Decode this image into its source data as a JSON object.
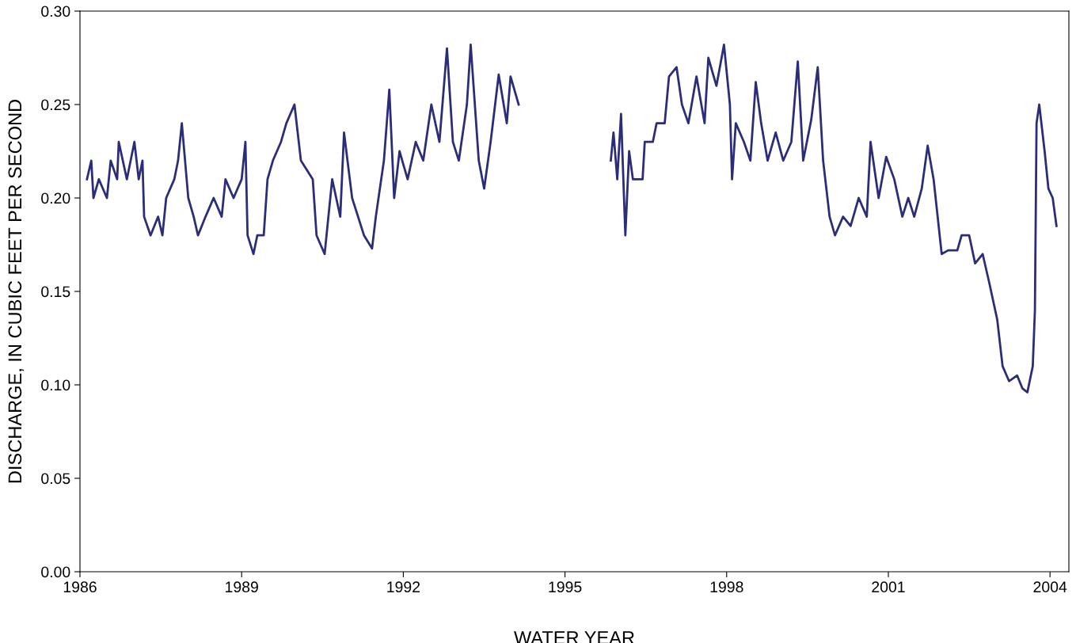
{
  "chart_data": {
    "type": "line",
    "xlabel": "WATER YEAR",
    "ylabel": "DISCHARGE, IN CUBIC FEET PER SECOND",
    "xlim": [
      1986,
      2004.35
    ],
    "xticks": [
      1986,
      1989,
      1992,
      1995,
      1998,
      2001,
      2004
    ],
    "ylim": [
      0,
      0.3
    ],
    "yticks": [
      {
        "value": 0,
        "label": "0.00"
      },
      {
        "value": 0.05,
        "label": "0.05"
      },
      {
        "value": 0.1,
        "label": "0.10"
      },
      {
        "value": 0.15,
        "label": "0.15"
      },
      {
        "value": 0.2,
        "label": "0.20"
      },
      {
        "value": 0.25,
        "label": "0.25"
      },
      {
        "value": 0.3,
        "label": "0.30"
      }
    ],
    "grid": false,
    "legend": false,
    "marker": "none",
    "line_style": "solid",
    "series": [
      {
        "color": "#2b2d78",
        "x": [
          1986.13,
          1986.21,
          1986.25,
          1986.35,
          1986.5,
          1986.57,
          1986.69,
          1986.72,
          1986.87,
          1987.01,
          1987.09,
          1987.16,
          1987.19,
          1987.31,
          1987.45,
          1987.53,
          1987.6,
          1987.75,
          1987.82,
          1987.89,
          1988.01,
          1988.11,
          1988.19,
          1988.33,
          1988.48,
          1988.63,
          1988.7,
          1988.85,
          1989.0,
          1989.07,
          1989.11,
          1989.22,
          1989.29,
          1989.41,
          1989.48,
          1989.58,
          1989.73,
          1989.83,
          1989.98,
          1990.1,
          1990.32,
          1990.39,
          1990.54,
          1990.68,
          1990.83,
          1990.9,
          1991.05,
          1991.27,
          1991.42,
          1991.49,
          1991.64,
          1991.74,
          1991.83,
          1991.93,
          1992.08,
          1992.23,
          1992.37,
          1992.52,
          1992.67,
          1992.81,
          1992.92,
          1993.03,
          1993.18,
          1993.25,
          1993.4,
          1993.5,
          1993.62,
          1993.77,
          1993.92,
          1993.99,
          1994.14,
          1995.0,
          1995.85,
          1995.9,
          1995.97,
          1996.04,
          1996.12,
          1996.19,
          1996.26,
          1996.44,
          1996.48,
          1996.63,
          1996.7,
          1996.85,
          1996.93,
          1997.07,
          1997.17,
          1997.29,
          1997.44,
          1997.59,
          1997.66,
          1997.81,
          1997.95,
          1998.06,
          1998.1,
          1998.17,
          1998.32,
          1998.44,
          1998.54,
          1998.64,
          1998.76,
          1998.91,
          1999.05,
          1999.2,
          1999.32,
          1999.42,
          1999.57,
          1999.69,
          1999.79,
          1999.91,
          2000.01,
          2000.16,
          2000.3,
          2000.45,
          2000.6,
          2000.67,
          2000.82,
          2000.96,
          2001.11,
          2001.26,
          2001.37,
          2001.48,
          2001.62,
          2001.73,
          2001.84,
          2001.99,
          2002.11,
          2002.28,
          2002.36,
          2002.5,
          2002.61,
          2002.75,
          2002.87,
          2003.02,
          2003.12,
          2003.24,
          2003.39,
          2003.49,
          2003.58,
          2003.68,
          2003.72,
          2003.75,
          2003.8,
          2003.9,
          2003.97,
          2004.05,
          2004.12
        ],
        "values": [
          0.21,
          0.22,
          0.2,
          0.21,
          0.2,
          0.22,
          0.21,
          0.23,
          0.21,
          0.23,
          0.21,
          0.22,
          0.19,
          0.18,
          0.19,
          0.18,
          0.2,
          0.21,
          0.22,
          0.24,
          0.2,
          0.19,
          0.18,
          0.19,
          0.2,
          0.19,
          0.21,
          0.2,
          0.21,
          0.23,
          0.18,
          0.17,
          0.18,
          0.18,
          0.21,
          0.22,
          0.23,
          0.24,
          0.25,
          0.22,
          0.21,
          0.18,
          0.17,
          0.21,
          0.19,
          0.235,
          0.2,
          0.18,
          0.173,
          0.19,
          0.22,
          0.258,
          0.2,
          0.225,
          0.21,
          0.23,
          0.22,
          0.25,
          0.23,
          0.28,
          0.23,
          0.22,
          0.25,
          0.282,
          0.22,
          0.205,
          0.23,
          0.266,
          0.24,
          0.265,
          0.25,
          null,
          0.22,
          0.235,
          0.21,
          0.245,
          0.18,
          0.225,
          0.21,
          0.21,
          0.23,
          0.23,
          0.24,
          0.24,
          0.265,
          0.27,
          0.25,
          0.24,
          0.265,
          0.24,
          0.275,
          0.26,
          0.282,
          0.25,
          0.21,
          0.24,
          0.23,
          0.22,
          0.262,
          0.24,
          0.22,
          0.235,
          0.22,
          0.23,
          0.273,
          0.22,
          0.242,
          0.27,
          0.22,
          0.19,
          0.18,
          0.19,
          0.185,
          0.2,
          0.19,
          0.23,
          0.2,
          0.222,
          0.21,
          0.19,
          0.2,
          0.19,
          0.205,
          0.228,
          0.21,
          0.17,
          0.172,
          0.172,
          0.18,
          0.18,
          0.165,
          0.17,
          0.155,
          0.135,
          0.11,
          0.102,
          0.105,
          0.098,
          0.096,
          0.11,
          0.14,
          0.24,
          0.25,
          0.225,
          0.205,
          0.2,
          0.185
        ]
      }
    ]
  }
}
